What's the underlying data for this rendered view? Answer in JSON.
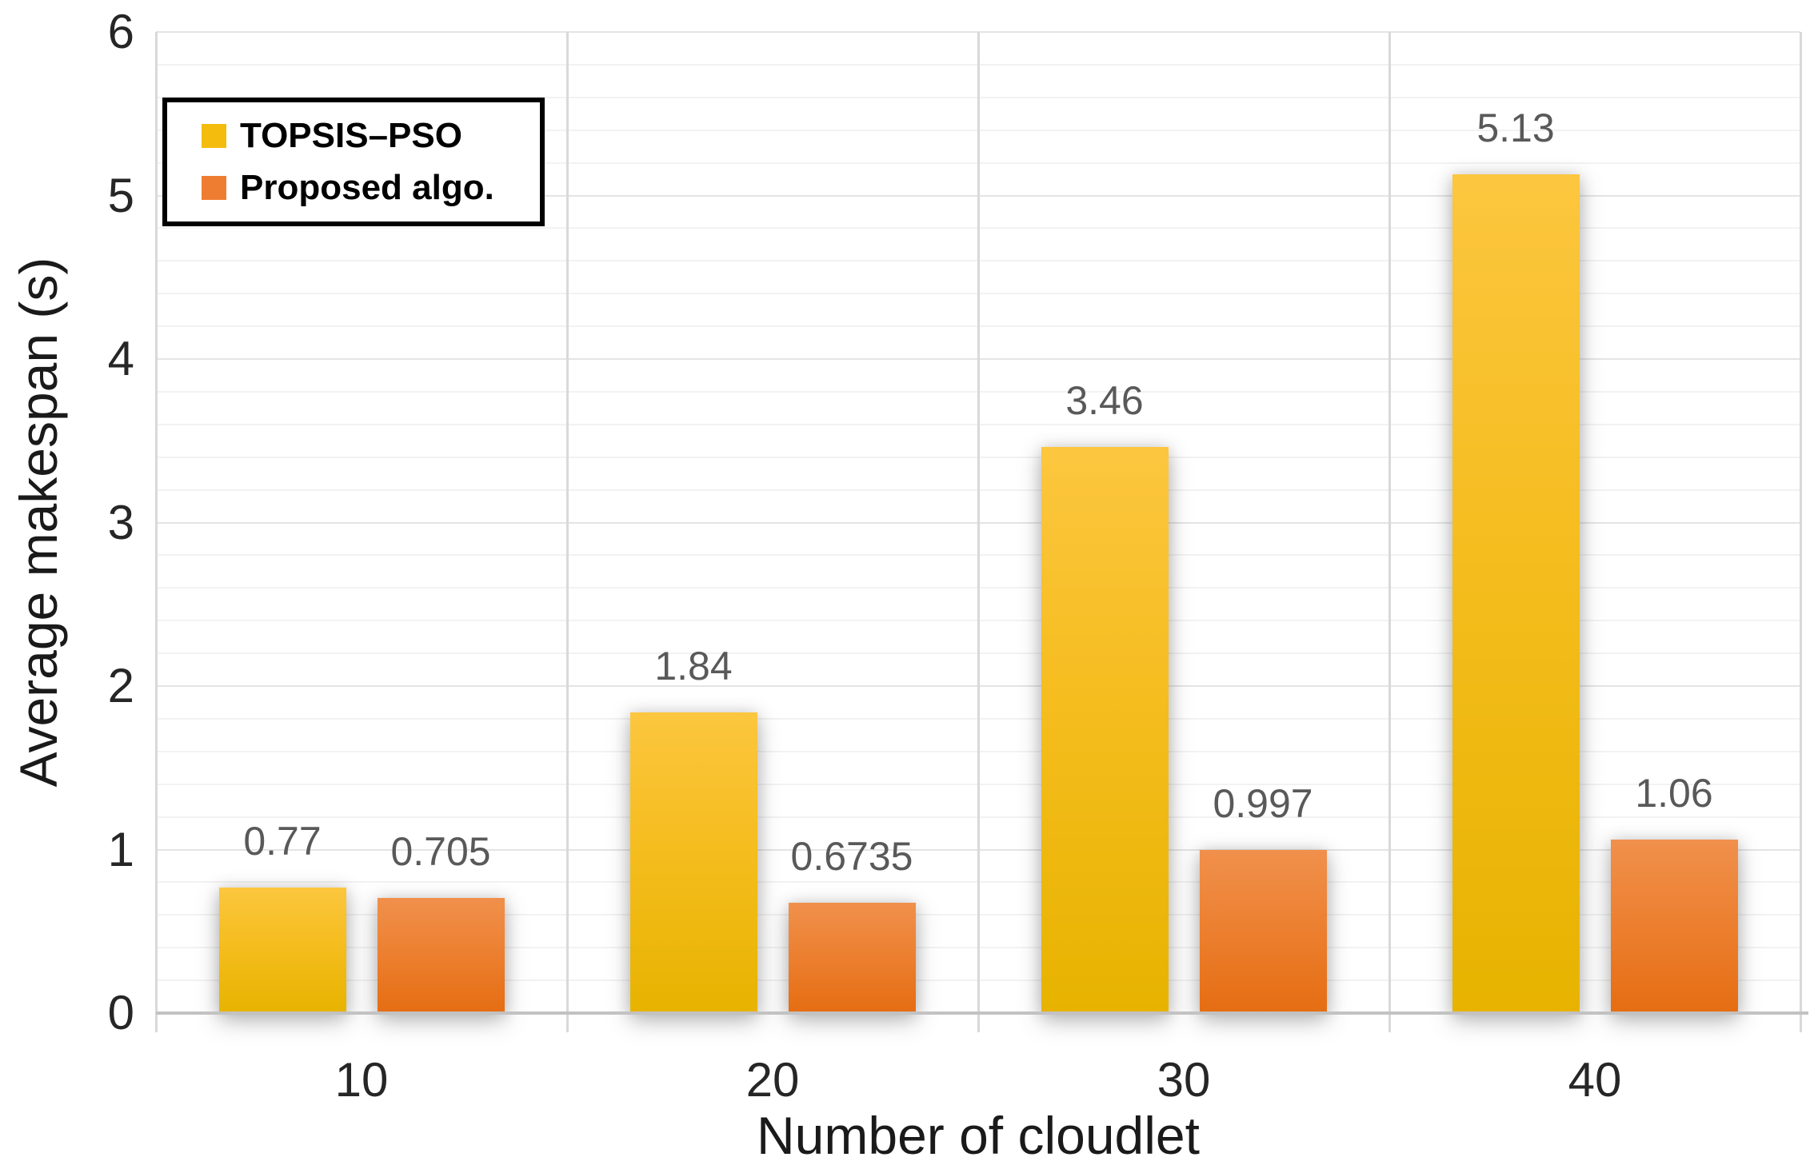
{
  "chart_data": {
    "type": "bar",
    "title": "",
    "xlabel": "Number of cloudlet",
    "ylabel": "Average makespan (s)",
    "categories": [
      "10",
      "20",
      "30",
      "40"
    ],
    "series": [
      {
        "name": "TOPSIS–PSO",
        "values": [
          0.77,
          1.84,
          3.46,
          5.13
        ],
        "labels": [
          "0.77",
          "1.84",
          "3.46",
          "5.13"
        ],
        "color_top": "#fcc63f",
        "color_bottom": "#e7b300",
        "legend_color": "#f4bd0e"
      },
      {
        "name": "Proposed algo.",
        "values": [
          0.705,
          0.6735,
          0.997,
          1.06
        ],
        "labels": [
          "0.705",
          "0.6735",
          "0.997",
          "1.06"
        ],
        "color_top": "#f0904c",
        "color_bottom": "#e56d12",
        "legend_color": "#ee7d32"
      }
    ],
    "ylim": [
      0,
      6
    ],
    "yticks": [
      "0",
      "1",
      "2",
      "3",
      "4",
      "5",
      "6"
    ],
    "minor_grid_step": 0.2,
    "grid": "on",
    "legend_position": "top-left",
    "gridline_minor_color": "#f2f2f2",
    "gridline_major_color": "#e4e4e4",
    "separator_color": "#d9d9d9",
    "axis_line_color": "#c2c2c2",
    "data_label_color": "#595959",
    "tick_label_color": "#262626"
  }
}
